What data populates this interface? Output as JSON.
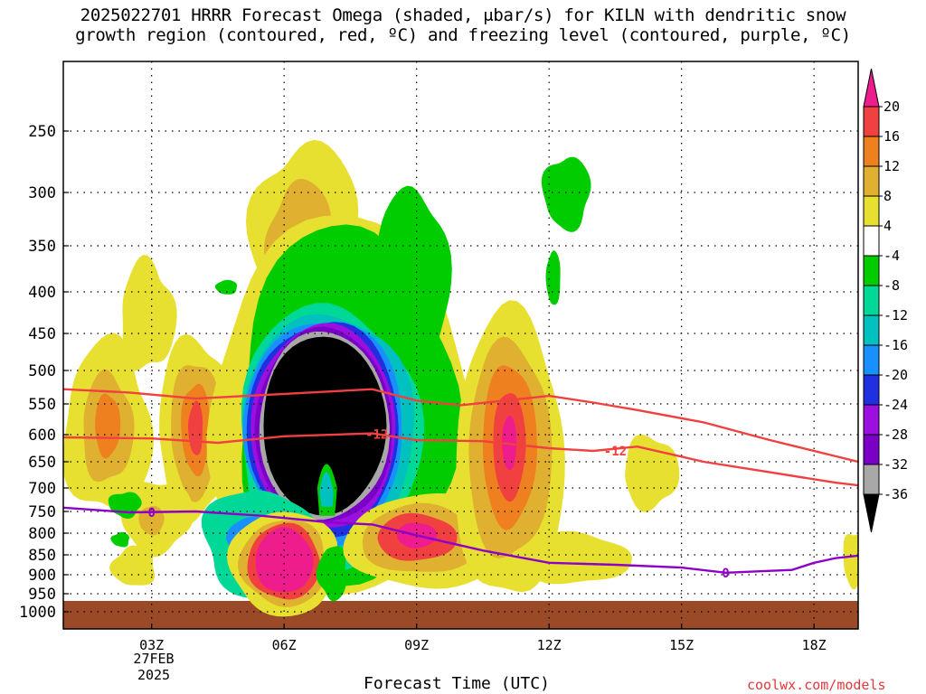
{
  "title": {
    "line1": "2025022701 HRRR Forecast Omega (shaded, μbar/s) for KILN with dendritic snow",
    "line2": "growth region (contoured, red, ºC) and freezing level (contoured, purple, ºC)"
  },
  "footer": {
    "xlabel": "Forecast Time (UTC)",
    "credit": "coolwx.com/models",
    "date_day": "27FEB",
    "date_year": "2025"
  },
  "chart_data": {
    "type": "heatmap",
    "title": "2025022701 HRRR Forecast Omega (shaded, μbar/s) for KILN with dendritic snow growth region (contoured, red, ºC) and freezing level (contoured, purple, ºC)",
    "xlabel": "Forecast Time (UTC)",
    "ylabel": "",
    "x_range_hours": [
      1,
      19
    ],
    "x_ticks": [
      {
        "hour": 3,
        "label": "03Z"
      },
      {
        "hour": 6,
        "label": "06Z"
      },
      {
        "hour": 9,
        "label": "09Z"
      },
      {
        "hour": 12,
        "label": "12Z"
      },
      {
        "hour": 15,
        "label": "15Z"
      },
      {
        "hour": 18,
        "label": "18Z"
      }
    ],
    "y_axis": "pressure (hPa), reversed",
    "y_ticks": [
      250,
      300,
      350,
      400,
      450,
      500,
      550,
      600,
      650,
      700,
      750,
      800,
      850,
      900,
      950,
      1000
    ],
    "grid": "dotted",
    "colorbar": {
      "units": "μbar/s",
      "boundaries": [
        -36,
        -32,
        -28,
        -24,
        -20,
        -16,
        -12,
        -8,
        -4,
        4,
        8,
        12,
        16,
        20
      ],
      "labels": [
        "20",
        "16",
        "12",
        "8",
        "4",
        "-4",
        "-8",
        "-12",
        "-16",
        "-20",
        "-24",
        "-28",
        "-32",
        "-36"
      ],
      "colors": [
        "#000000",
        "#a8a8a8",
        "#7a00c8",
        "#9b10e0",
        "#2030e0",
        "#1890ff",
        "#00c0c0",
        "#00d898",
        "#00cc00",
        "#ffffff",
        "#e8e030",
        "#e0b030",
        "#ee8020",
        "#f04040",
        "#ee1c8c"
      ]
    },
    "surface_below_hpa": 970,
    "omega_features": [
      {
        "label": "strong ascent core",
        "x_hours": [
          5.6,
          8.8
        ],
        "p_hpa": [
          450,
          730
        ],
        "max_value": -36
      },
      {
        "label": "ascent around core",
        "x_hours": [
          4.8,
          9.0
        ],
        "p_hpa": [
          380,
          930
        ],
        "range": [
          -36,
          -4
        ]
      },
      {
        "label": "descent lobe",
        "x_hours": [
          5.8,
          6.5
        ],
        "p_hpa": [
          780,
          950
        ],
        "max_value": 20
      },
      {
        "label": "descent lobe",
        "x_hours": [
          10.8,
          11.2
        ],
        "p_hpa": [
          500,
          720
        ],
        "max_value": 20
      },
      {
        "label": "descent lobe",
        "x_hours": [
          8.8,
          9.2
        ],
        "p_hpa": [
          760,
          840
        ],
        "max_value": 20
      },
      {
        "label": "descent lobe",
        "x_hours": [
          3.9,
          4.1
        ],
        "p_hpa": [
          550,
          640
        ],
        "max_value": 16
      },
      {
        "label": "descent lobe",
        "x_hours": [
          1.8,
          2.1
        ],
        "p_hpa": [
          560,
          620
        ],
        "max_value": 12
      },
      {
        "label": "ascent upper",
        "x_hours": [
          11.8,
          12.9
        ],
        "p_hpa": [
          280,
          410
        ],
        "range": [
          -8,
          -4
        ]
      }
    ],
    "series": [
      {
        "name": "-12",
        "color": "#f04040",
        "x_hours": [
          1.0,
          2.5,
          4.0,
          6.0,
          8.0,
          9.0,
          10.0,
          12.0,
          13.0,
          14.0,
          15.5,
          17.0,
          18.5,
          19.0
        ],
        "p_hpa": [
          528,
          533,
          542,
          535,
          528,
          545,
          552,
          538,
          548,
          560,
          580,
          610,
          640,
          650
        ]
      },
      {
        "name": "-12",
        "color": "#f04040",
        "x_hours": [
          1.0,
          3.0,
          4.5,
          6.0,
          8.0,
          9.0,
          10.5,
          12.0,
          13.0,
          14.0,
          15.5,
          17.0,
          18.5,
          19.0
        ],
        "p_hpa": [
          605,
          607,
          615,
          603,
          598,
          610,
          612,
          625,
          630,
          622,
          650,
          670,
          690,
          695
        ]
      },
      {
        "name": "0",
        "color": "#8e00c8",
        "x_hours": [
          1.0,
          2.5,
          4.0,
          5.5,
          7.0,
          8.0,
          9.0,
          10.5,
          12.0,
          13.5,
          15.0,
          16.0,
          17.5,
          18.0,
          18.5,
          19.0
        ],
        "p_hpa": [
          742,
          752,
          750,
          760,
          775,
          780,
          805,
          840,
          870,
          875,
          882,
          895,
          888,
          870,
          858,
          852
        ]
      }
    ],
    "contour_labels": [
      "-12",
      "-12",
      "0",
      "0"
    ]
  }
}
